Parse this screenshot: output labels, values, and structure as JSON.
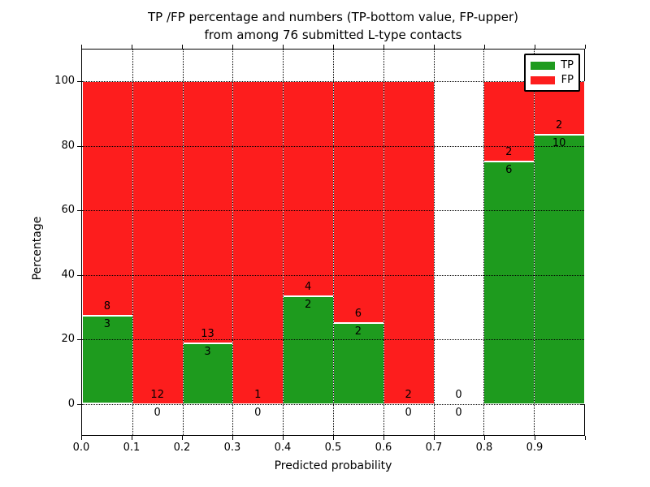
{
  "figure": {
    "title_line1": "TP /FP percentage and numbers (TP-bottom value, FP-upper)",
    "title_line2": "from among 76 submitted L-type contacts",
    "xlabel": "Predicted probability",
    "ylabel": "Percentage"
  },
  "chart_data": {
    "type": "bar",
    "stacked": true,
    "normalized": "each bin stacked to 100% of bin total; numbers annotated are raw counts (TP bottom, FP upper)",
    "title": "TP /FP percentage and numbers (TP-bottom value, FP-upper) from among 76 submitted L-type contacts",
    "xlabel": "Predicted probability",
    "ylabel": "Percentage",
    "x_bin_edges": [
      0.0,
      0.1,
      0.2,
      0.3,
      0.4,
      0.5,
      0.6,
      0.7,
      0.8,
      0.9,
      1.0
    ],
    "x_tick_labels": [
      "0.0",
      "0.1",
      "0.2",
      "0.3",
      "0.4",
      "0.5",
      "0.6",
      "0.7",
      "0.8",
      "0.9"
    ],
    "y_ticks": [
      0,
      20,
      40,
      60,
      80,
      100
    ],
    "ylim": [
      -10.8,
      110
    ],
    "grid": "dotted black, both axes, drawn over bars",
    "legend_position": "upper right",
    "series": [
      {
        "name": "TP",
        "color": "#1e9b1e",
        "counts": [
          3,
          0,
          3,
          0,
          2,
          2,
          0,
          0,
          6,
          10
        ]
      },
      {
        "name": "FP",
        "color": "#fd1d1d",
        "counts": [
          8,
          12,
          13,
          1,
          4,
          6,
          2,
          0,
          2,
          2
        ]
      }
    ],
    "tp_percent_per_bin": [
      27.3,
      0,
      18.8,
      0,
      33.3,
      25.0,
      0,
      null,
      75.0,
      83.3
    ],
    "total_contacts": 76
  }
}
